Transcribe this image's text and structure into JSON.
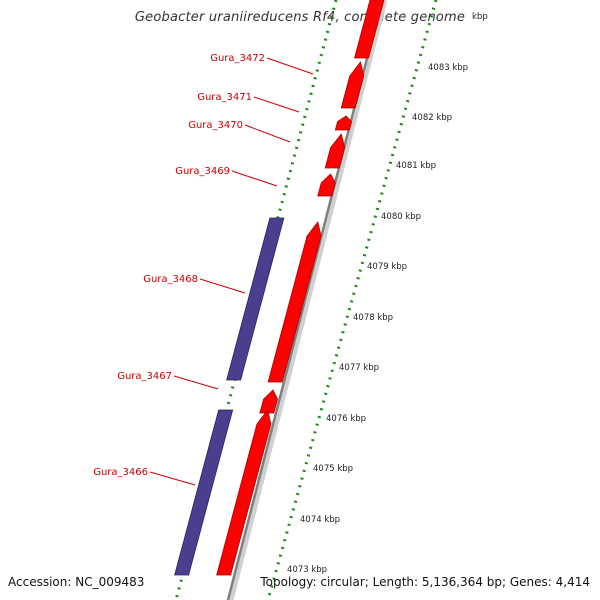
{
  "title": "Geobacter uraniireducens Rf4, complete genome",
  "footer": {
    "accession": "Accession: NC_009483",
    "topology": "Topology: circular; Length: 5,136,364 bp; Genes: 4,414"
  },
  "colors": {
    "forward_gene": "#ff0000",
    "reverse_gene": "#4a3f8f",
    "gene_label": "#cc0000",
    "tick_dot": "#1a8a1a",
    "backbone": "#808080"
  },
  "genes": [
    {
      "label": "Gura_3466",
      "strand": "reverse"
    },
    {
      "label": "Gura_3467",
      "strand": "forward"
    },
    {
      "label": "Gura_3468",
      "strand": "forward"
    },
    {
      "label": "Gura_3469",
      "strand": "forward"
    },
    {
      "label": "Gura_3470",
      "strand": "forward"
    },
    {
      "label": "Gura_3471",
      "strand": "forward"
    },
    {
      "label": "Gura_3472",
      "strand": "forward"
    }
  ],
  "scale_labels": [
    "4073 kbp",
    "4074 kbp",
    "4075 kbp",
    "4076 kbp",
    "4077 kbp",
    "4078 kbp",
    "4079 kbp",
    "4080 kbp",
    "4081 kbp",
    "4082 kbp",
    "4083 kbp",
    "kbp"
  ]
}
